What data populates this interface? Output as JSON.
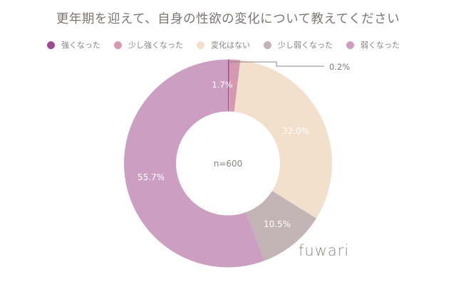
{
  "title": "更年期を迎えて、自身の性欲の変化について教えてください",
  "legend": [
    {
      "label": "強くなった",
      "color": "#9b4c8c"
    },
    {
      "label": "少し強くなった",
      "color": "#d49bb0"
    },
    {
      "label": "変化はない",
      "color": "#f2e0cd"
    },
    {
      "label": "少し弱くなった",
      "color": "#c3b4b6"
    },
    {
      "label": "弱くなった",
      "color": "#cc9fc2"
    }
  ],
  "center_label": "n=600",
  "logo": "fuwari",
  "slice_labels": [
    "0.2%",
    "1.7%",
    "32.0%",
    "10.5%",
    "55.7%"
  ],
  "chart_data": {
    "type": "pie",
    "donut": true,
    "title": "更年期を迎えて、自身の性欲の変化について教えてください",
    "categories": [
      "強くなった",
      "少し強くなった",
      "変化はない",
      "少し弱くなった",
      "弱くなった"
    ],
    "values": [
      0.2,
      1.7,
      32.0,
      10.5,
      55.7
    ],
    "unit": "%",
    "n": 600,
    "center_text": "n=600",
    "legend_position": "top",
    "colors": [
      "#9b4c8c",
      "#d49bb0",
      "#f2e0cd",
      "#c3b4b6",
      "#cc9fc2"
    ]
  }
}
